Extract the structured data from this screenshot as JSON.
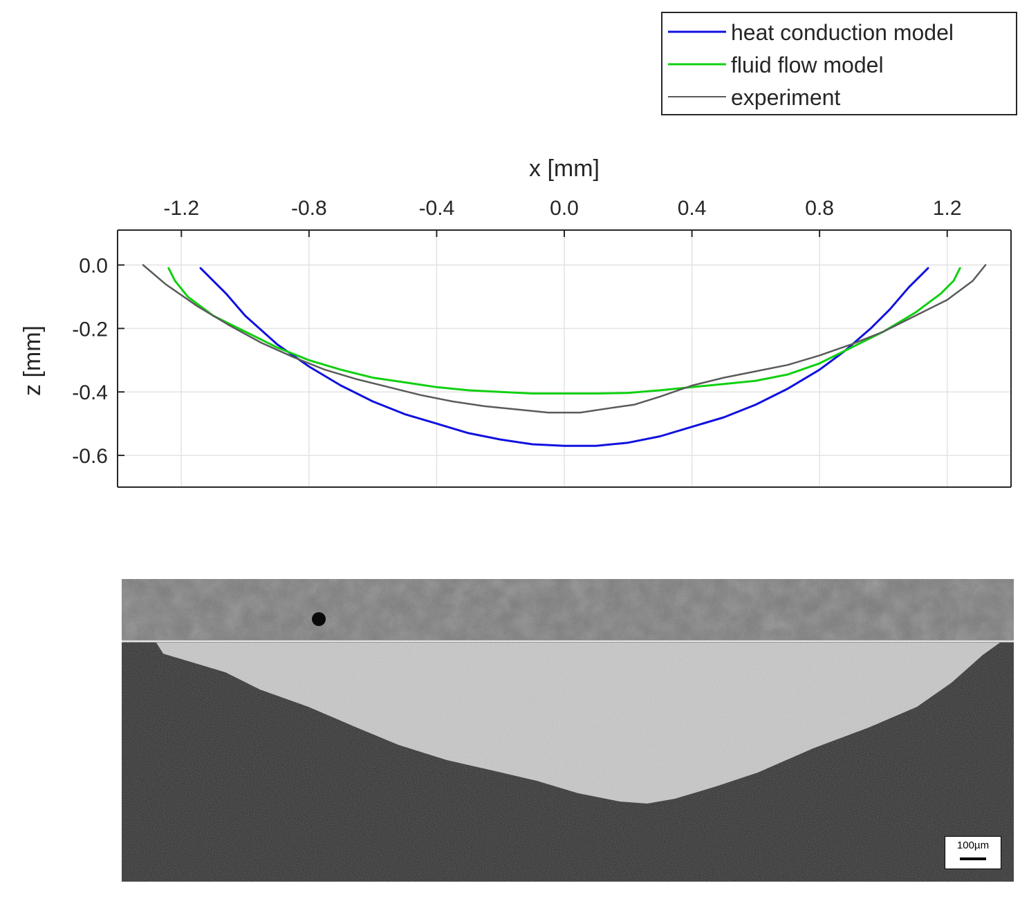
{
  "chart_data": {
    "type": "line",
    "xlabel": "x [mm]",
    "ylabel": "z [mm]",
    "xlim": [
      -1.4,
      1.4
    ],
    "ylim": [
      -0.7,
      0.11
    ],
    "xticks": [
      -1.2,
      -0.8,
      -0.4,
      0.0,
      0.4,
      0.8,
      1.2
    ],
    "xtick_labels": [
      "-1.2",
      "-0.8",
      "-0.4",
      "0.0",
      "0.4",
      "0.8",
      "1.2"
    ],
    "yticks": [
      0.0,
      -0.2,
      -0.4,
      -0.6
    ],
    "ytick_labels": [
      "0.0",
      "-0.2",
      "-0.4",
      "-0.6"
    ],
    "grid": true,
    "x_axis_position": "top",
    "legend_position": "above-right",
    "series": [
      {
        "name": "heat conduction model",
        "color": "#1010e0",
        "points": [
          [
            -1.14,
            -0.01
          ],
          [
            -1.06,
            -0.09
          ],
          [
            -1.0,
            -0.16
          ],
          [
            -0.9,
            -0.25
          ],
          [
            -0.8,
            -0.32
          ],
          [
            -0.7,
            -0.38
          ],
          [
            -0.6,
            -0.43
          ],
          [
            -0.5,
            -0.47
          ],
          [
            -0.4,
            -0.5
          ],
          [
            -0.3,
            -0.53
          ],
          [
            -0.2,
            -0.55
          ],
          [
            -0.1,
            -0.565
          ],
          [
            0.0,
            -0.57
          ],
          [
            0.1,
            -0.57
          ],
          [
            0.2,
            -0.56
          ],
          [
            0.3,
            -0.54
          ],
          [
            0.4,
            -0.51
          ],
          [
            0.5,
            -0.48
          ],
          [
            0.6,
            -0.44
          ],
          [
            0.7,
            -0.39
          ],
          [
            0.8,
            -0.33
          ],
          [
            0.88,
            -0.27
          ],
          [
            0.96,
            -0.2
          ],
          [
            1.02,
            -0.14
          ],
          [
            1.08,
            -0.07
          ],
          [
            1.12,
            -0.03
          ],
          [
            1.14,
            -0.01
          ]
        ]
      },
      {
        "name": "fluid flow model",
        "color": "#10d010",
        "points": [
          [
            -1.24,
            -0.01
          ],
          [
            -1.22,
            -0.05
          ],
          [
            -1.18,
            -0.1
          ],
          [
            -1.1,
            -0.16
          ],
          [
            -1.0,
            -0.21
          ],
          [
            -0.9,
            -0.26
          ],
          [
            -0.8,
            -0.3
          ],
          [
            -0.7,
            -0.33
          ],
          [
            -0.6,
            -0.355
          ],
          [
            -0.5,
            -0.37
          ],
          [
            -0.4,
            -0.385
          ],
          [
            -0.3,
            -0.395
          ],
          [
            -0.2,
            -0.4
          ],
          [
            -0.1,
            -0.405
          ],
          [
            0.0,
            -0.405
          ],
          [
            0.1,
            -0.405
          ],
          [
            0.2,
            -0.403
          ],
          [
            0.3,
            -0.395
          ],
          [
            0.4,
            -0.385
          ],
          [
            0.5,
            -0.375
          ],
          [
            0.6,
            -0.365
          ],
          [
            0.7,
            -0.345
          ],
          [
            0.8,
            -0.31
          ],
          [
            0.9,
            -0.26
          ],
          [
            1.0,
            -0.21
          ],
          [
            1.1,
            -0.15
          ],
          [
            1.18,
            -0.09
          ],
          [
            1.22,
            -0.05
          ],
          [
            1.24,
            -0.01
          ]
        ]
      },
      {
        "name": "experiment",
        "color": "#5a5a5a",
        "points": [
          [
            -1.32,
            0.0
          ],
          [
            -1.25,
            -0.06
          ],
          [
            -1.15,
            -0.13
          ],
          [
            -1.05,
            -0.19
          ],
          [
            -0.95,
            -0.245
          ],
          [
            -0.85,
            -0.29
          ],
          [
            -0.75,
            -0.33
          ],
          [
            -0.65,
            -0.36
          ],
          [
            -0.55,
            -0.385
          ],
          [
            -0.45,
            -0.41
          ],
          [
            -0.35,
            -0.43
          ],
          [
            -0.25,
            -0.445
          ],
          [
            -0.15,
            -0.455
          ],
          [
            -0.05,
            -0.465
          ],
          [
            0.05,
            -0.465
          ],
          [
            0.15,
            -0.45
          ],
          [
            0.22,
            -0.44
          ],
          [
            0.3,
            -0.415
          ],
          [
            0.4,
            -0.38
          ],
          [
            0.5,
            -0.355
          ],
          [
            0.6,
            -0.335
          ],
          [
            0.7,
            -0.315
          ],
          [
            0.8,
            -0.285
          ],
          [
            0.9,
            -0.25
          ],
          [
            1.0,
            -0.21
          ],
          [
            1.1,
            -0.16
          ],
          [
            1.2,
            -0.11
          ],
          [
            1.28,
            -0.05
          ],
          [
            1.32,
            0.0
          ]
        ]
      }
    ]
  },
  "micrograph": {
    "scale_bar_label": "100µm"
  }
}
